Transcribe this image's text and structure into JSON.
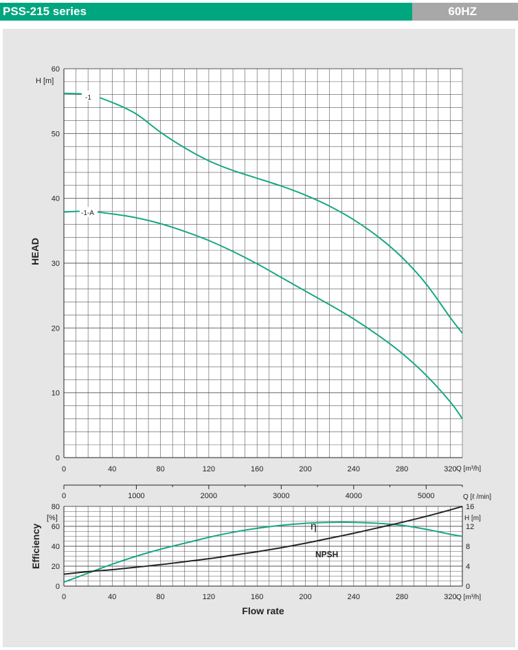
{
  "header": {
    "title": "PSS-215 series",
    "frequency": "60HZ"
  },
  "colors": {
    "accent": "#00a67e",
    "curve_green": "#16a783",
    "curve_black": "#222222",
    "panel_bg": "#e6e6e6",
    "header_gray": "#a8a8a8"
  },
  "chart_data": [
    {
      "type": "line",
      "id": "head",
      "ylabel": "HEAD",
      "yunit": "H [m]",
      "xunit": "Q [m³/h]",
      "xlim": [
        0,
        330
      ],
      "ylim": [
        0,
        60
      ],
      "x_ticks": [
        "0",
        "40",
        "80",
        "120",
        "160",
        "200",
        "240",
        "280",
        "320"
      ],
      "y_ticks": [
        "0",
        "10",
        "20",
        "30",
        "40",
        "50",
        "60"
      ],
      "grid": true,
      "series": [
        {
          "name": "-1",
          "x": [
            0,
            20,
            40,
            60,
            80,
            100,
            120,
            140,
            160,
            180,
            200,
            220,
            240,
            260,
            280,
            300,
            320,
            330
          ],
          "y": [
            56.2,
            56.0,
            54.8,
            53.0,
            50.2,
            47.8,
            45.8,
            44.3,
            43.1,
            41.9,
            40.5,
            38.8,
            36.7,
            34.1,
            30.9,
            26.8,
            21.6,
            19.2
          ]
        },
        {
          "name": "-1-A",
          "x": [
            0,
            20,
            40,
            60,
            80,
            100,
            120,
            140,
            160,
            180,
            200,
            220,
            240,
            260,
            280,
            300,
            320,
            330
          ],
          "y": [
            37.9,
            38.0,
            37.6,
            37.0,
            36.1,
            34.9,
            33.5,
            31.8,
            29.9,
            27.8,
            25.7,
            23.6,
            21.4,
            18.9,
            16.1,
            12.7,
            8.6,
            6.0
          ]
        }
      ]
    },
    {
      "type": "axis",
      "id": "flow_lmin",
      "xunit": "Q [ℓ /min]",
      "xlim": [
        0,
        5500
      ],
      "x_ticks": [
        "0",
        "1000",
        "2000",
        "3000",
        "4000",
        "5000"
      ]
    },
    {
      "type": "line",
      "id": "efficiency_npsh",
      "ylabel": "Efficiency",
      "yunit_left": "[%]",
      "yunit_right": "H [m]",
      "xlabel": "Flow rate",
      "xunit": "Q [m³/h]",
      "xlim": [
        0,
        330
      ],
      "ylim_left": [
        0,
        80
      ],
      "ylim_right": [
        0,
        16
      ],
      "x_ticks": [
        "0",
        "40",
        "80",
        "120",
        "160",
        "200",
        "240",
        "280",
        "320"
      ],
      "y_ticks_left": [
        "0",
        "20",
        "40",
        "60",
        "80"
      ],
      "y_ticks_right": [
        "0",
        "4",
        "8",
        "12",
        "16"
      ],
      "grid": true,
      "series": [
        {
          "name": "η",
          "axis": "left",
          "x": [
            0,
            20,
            40,
            60,
            80,
            100,
            120,
            140,
            160,
            180,
            200,
            220,
            240,
            260,
            280,
            300,
            320,
            330
          ],
          "y": [
            4,
            13,
            22,
            30,
            37,
            43,
            49,
            54,
            58,
            61,
            63,
            64,
            64,
            63,
            61,
            57,
            52,
            50
          ]
        },
        {
          "name": "NPSH",
          "axis": "right",
          "x": [
            0,
            20,
            40,
            60,
            80,
            100,
            120,
            140,
            160,
            180,
            200,
            220,
            240,
            260,
            280,
            300,
            320,
            330
          ],
          "y": [
            2.4,
            2.9,
            3.3,
            3.8,
            4.3,
            4.9,
            5.5,
            6.2,
            6.9,
            7.7,
            8.6,
            9.6,
            10.6,
            11.7,
            12.8,
            14.0,
            15.3,
            16.0
          ]
        }
      ]
    }
  ]
}
